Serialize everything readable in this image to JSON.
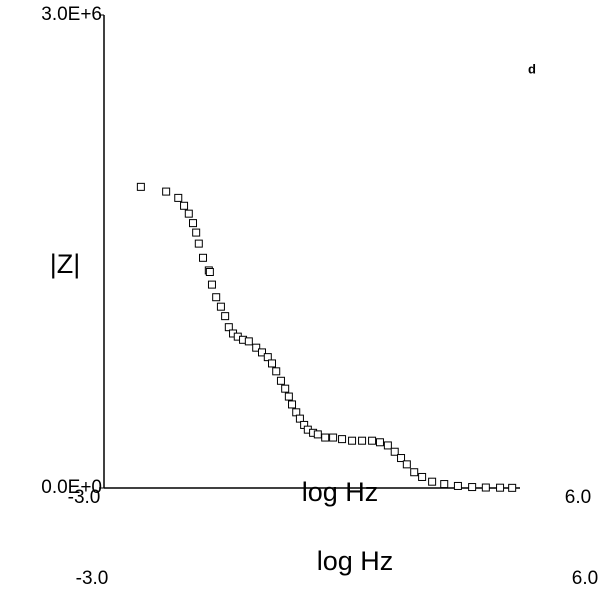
{
  "chart_data": {
    "type": "scatter",
    "annotation": "d",
    "x_label": "log Hz",
    "y_label": "|Z|",
    "x": [
      -2.3,
      -1.82,
      -1.59,
      -1.48,
      -1.39,
      -1.31,
      -1.25,
      -1.2,
      -1.12,
      -1.01,
      -0.99,
      -0.95,
      -0.87,
      -0.78,
      -0.7,
      -0.63,
      -0.55,
      -0.46,
      -0.36,
      -0.25,
      -0.11,
      0.0,
      0.11,
      0.19,
      0.27,
      0.36,
      0.44,
      0.51,
      0.57,
      0.65,
      0.72,
      0.8,
      0.87,
      0.97,
      1.06,
      1.2,
      1.35,
      1.52,
      1.71,
      1.9,
      2.09,
      2.24,
      2.39,
      2.52,
      2.64,
      2.75,
      2.89,
      3.04,
      3.23,
      3.46,
      3.72,
      3.99,
      4.25,
      4.52,
      4.75
    ],
    "values": [
      1910000,
      1880000,
      1840000,
      1790000,
      1740000,
      1680000,
      1620000,
      1550000,
      1460000,
      1380000,
      1370000,
      1290000,
      1210000,
      1150000,
      1090000,
      1020000,
      980000,
      960000,
      940000,
      930000,
      890000,
      860000,
      830000,
      790000,
      740000,
      680000,
      630000,
      580000,
      530000,
      480000,
      440000,
      400000,
      370000,
      350000,
      340000,
      320000,
      320000,
      310000,
      300000,
      300000,
      300000,
      290000,
      270000,
      230000,
      190000,
      150000,
      100000,
      70000,
      40000,
      25000,
      13000,
      6000,
      3000,
      2000,
      1000
    ],
    "color": "#000000",
    "xlim": [
      -3,
      6
    ],
    "ylim": [
      0,
      3000000
    ],
    "xticks": [
      {
        "value": -3,
        "label": "-3.0"
      },
      {
        "value": 6,
        "label": "6.0"
      }
    ],
    "yticks": [
      {
        "value": 0,
        "label": "0.0E+0"
      },
      {
        "value": 3000000,
        "label": "3.0E+6"
      }
    ],
    "repeated_labels": {
      "x_label": "log Hz",
      "x_min": "-3.0",
      "x_max": "6.0"
    }
  }
}
